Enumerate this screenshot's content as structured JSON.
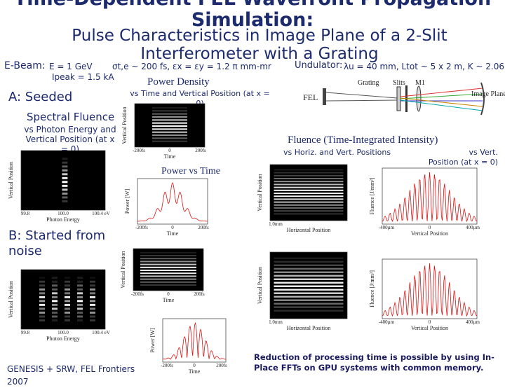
{
  "header": {
    "title": "Time-Dependent FEL Wavefront Propagation Simulation:",
    "subtitle": "Pulse Characteristics in Image Plane of a 2-Slit Interferometer with a Grating"
  },
  "ebeam": {
    "label": "E-Beam:",
    "energy": "E = 1 GeV",
    "current": "Ipeak = 1.5 kA",
    "params": "σt,e ~ 200 fs, εx = εy = 1.2 π mm-mr"
  },
  "undulator": {
    "label": "Undulator:",
    "params": "λu = 40 mm, Ltot ~ 5 x 2 m, K ~ 2.06"
  },
  "case_a": {
    "title": "A: Seeded",
    "spectral_title": "Spectral Fluence",
    "spectral_sub": "vs Photon Energy and Vertical Position (at x = 0)"
  },
  "case_b": {
    "title": "B: Started from noise"
  },
  "power_density": {
    "title": "Power Density",
    "sub": "vs Time and Vertical Position (at x = 0)"
  },
  "power_time": {
    "title": "Power vs Time"
  },
  "fluence": {
    "title": "Fluence (Time-Integrated Intensity)",
    "sub_left": "vs Horiz. and Vert. Positions",
    "sub_right": "vs Vert. Position (at x = 0)"
  },
  "diagram": {
    "source": "FEL",
    "grating": "Grating",
    "slits": "Slits",
    "mirror": "M1",
    "image_plane": "Image Plane"
  },
  "plots": [
    {
      "xlabel": "Photon Energy",
      "ylabel": "Vertical Position",
      "xticks": [
        "99.8",
        "100.0",
        "100.4 eV"
      ]
    },
    {
      "xlabel": "Time",
      "ylabel": "Vertical Position",
      "xticks": [
        "-200fs",
        "0",
        "200fs"
      ]
    },
    {
      "xlabel": "Time",
      "ylabel": "Power [W]",
      "xticks": [
        "-200fs",
        "0",
        "200fs"
      ]
    },
    {
      "xlabel": "Horizontal Position",
      "ylabel": "Vertical Position",
      "xticks": [
        "1.0mm"
      ]
    },
    {
      "xlabel": "Vertical Position",
      "ylabel": "Fluence [J/mm²]",
      "xticks": [
        "-400µm",
        "0",
        "400µm"
      ]
    },
    {
      "xlabel": "Photon Energy",
      "ylabel": "Vertical Position",
      "xticks": [
        "99.8",
        "100.0",
        "100.4 eV"
      ]
    },
    {
      "xlabel": "Time",
      "ylabel": "Vertical Position",
      "xticks": [
        "-200fs",
        "0",
        "200fs"
      ]
    },
    {
      "xlabel": "Time",
      "ylabel": "Power [W]",
      "xticks": [
        "-200fs",
        "0",
        "200fs"
      ]
    },
    {
      "xlabel": "Horizontal Position",
      "ylabel": "Vertical Position",
      "xticks": [
        "1.0mm"
      ]
    },
    {
      "xlabel": "Vertical Position",
      "ylabel": "Fluence [J/mm²]",
      "xticks": [
        "-400µm",
        "0",
        "400µm"
      ]
    }
  ],
  "footer": {
    "credit": "GENESIS + SRW, FEL Frontiers 2007",
    "note": "Reduction of processing time is possible by using In-Place FFTs on GPU systems with common memory."
  }
}
